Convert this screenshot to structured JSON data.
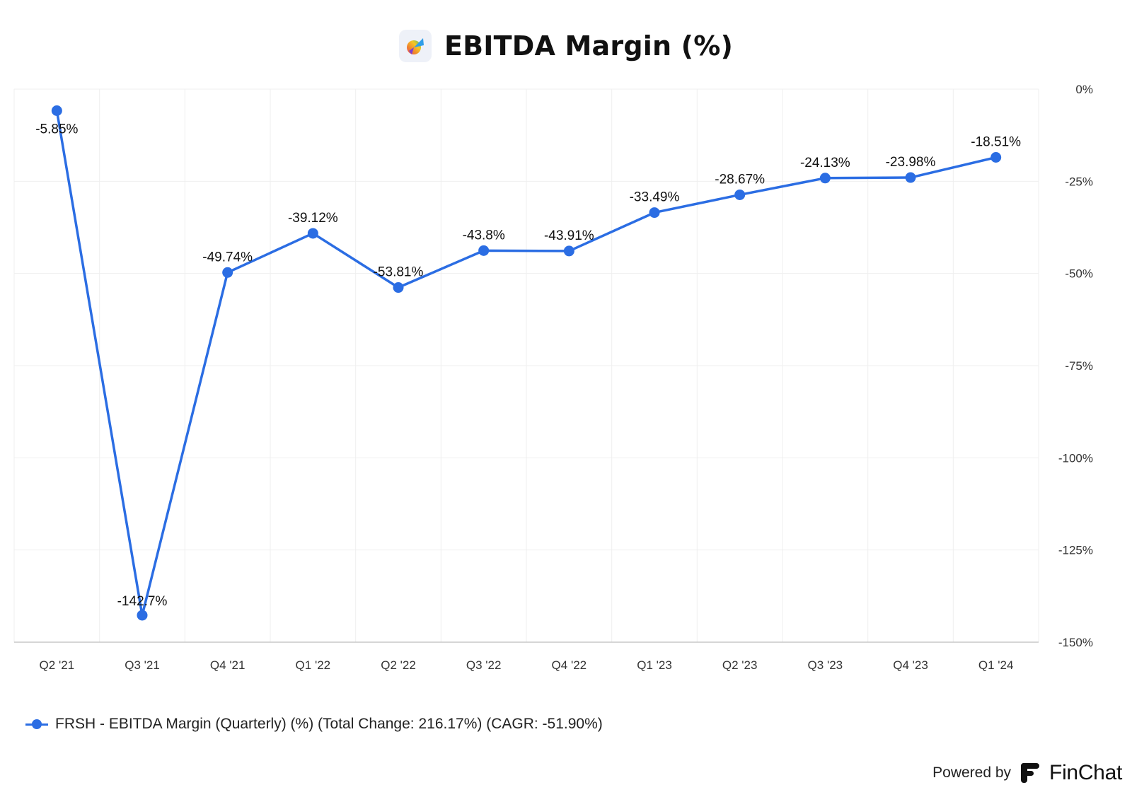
{
  "header": {
    "title": "EBITDA Margin (%)",
    "logo_icon": "company-logo-icon"
  },
  "chart_data": {
    "type": "line",
    "title": "EBITDA Margin (%)",
    "categories": [
      "Q2 '21",
      "Q3 '21",
      "Q4 '21",
      "Q1 '22",
      "Q2 '22",
      "Q3 '22",
      "Q4 '22",
      "Q1 '23",
      "Q2 '23",
      "Q3 '23",
      "Q4 '23",
      "Q1 '24"
    ],
    "series": [
      {
        "name": "FRSH - EBITDA Margin (Quarterly) (%) (Total Change: 216.17%) (CAGR: -51.90%)",
        "values": [
          -5.85,
          -142.7,
          -49.74,
          -39.12,
          -53.81,
          -43.8,
          -43.91,
          -33.49,
          -28.67,
          -24.13,
          -23.98,
          -18.51
        ],
        "labels": [
          "-5.85%",
          "-142.7%",
          "-49.74%",
          "-39.12%",
          "-53.81%",
          "-43.8%",
          "-43.91%",
          "-33.49%",
          "-28.67%",
          "-24.13%",
          "-23.98%",
          "-18.51%"
        ],
        "color": "#2b6de3"
      }
    ],
    "yticks": [
      0,
      -25,
      -50,
      -75,
      -100,
      -125,
      -150
    ],
    "ytick_labels": [
      "0%",
      "-25%",
      "-50%",
      "-75%",
      "-100%",
      "-125%",
      "-150%"
    ],
    "ylim": [
      -150,
      0
    ],
    "y_axis_position": "right",
    "grid": true,
    "legend_position": "bottom-left"
  },
  "legend": {
    "label": "FRSH - EBITDA Margin (Quarterly) (%) (Total Change: 216.17%) (CAGR: -51.90%)"
  },
  "footer": {
    "powered_by": "Powered by",
    "brand": "FinChat",
    "brand_icon": "finchat-logo-icon"
  }
}
